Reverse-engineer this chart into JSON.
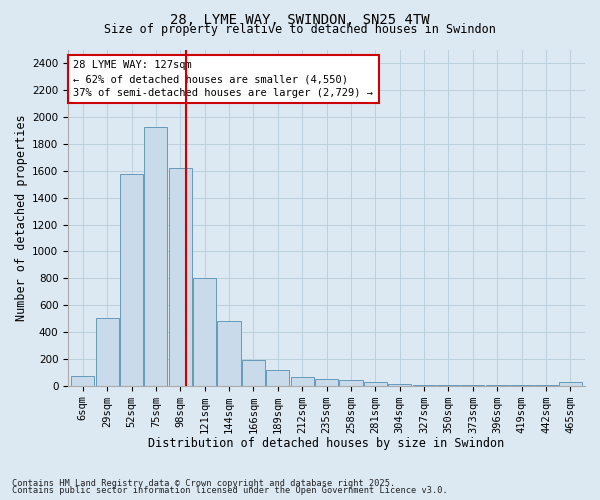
{
  "title1": "28, LYME WAY, SWINDON, SN25 4TW",
  "title2": "Size of property relative to detached houses in Swindon",
  "xlabel": "Distribution of detached houses by size in Swindon",
  "ylabel": "Number of detached properties",
  "footer1": "Contains HM Land Registry data © Crown copyright and database right 2025.",
  "footer2": "Contains public sector information licensed under the Open Government Licence v3.0.",
  "annotation_line1": "28 LYME WAY: 127sqm",
  "annotation_line2": "← 62% of detached houses are smaller (4,550)",
  "annotation_line3": "37% of semi-detached houses are larger (2,729) →",
  "bar_color": "#c9daea",
  "bar_edge_color": "#6699bb",
  "vline_color": "#cc0000",
  "background_color": "#dce8f2",
  "categories": [
    "6sqm",
    "29sqm",
    "52sqm",
    "75sqm",
    "98sqm",
    "121sqm",
    "144sqm",
    "166sqm",
    "189sqm",
    "212sqm",
    "235sqm",
    "258sqm",
    "281sqm",
    "304sqm",
    "327sqm",
    "350sqm",
    "373sqm",
    "396sqm",
    "419sqm",
    "442sqm",
    "465sqm"
  ],
  "values": [
    75,
    500,
    1580,
    1930,
    1620,
    800,
    480,
    190,
    115,
    65,
    50,
    40,
    30,
    10,
    5,
    3,
    2,
    1,
    1,
    1,
    30
  ],
  "vline_x": 4.25,
  "ylim": [
    0,
    2500
  ],
  "yticks": [
    0,
    200,
    400,
    600,
    800,
    1000,
    1200,
    1400,
    1600,
    1800,
    2000,
    2200,
    2400
  ],
  "grid_color": "#b8ccda",
  "annot_fontsize": 7.5,
  "title1_fontsize": 10,
  "title2_fontsize": 8.5,
  "xlabel_fontsize": 8.5,
  "ylabel_fontsize": 8.5,
  "tick_fontsize": 7.5,
  "footer_fontsize": 6.2
}
